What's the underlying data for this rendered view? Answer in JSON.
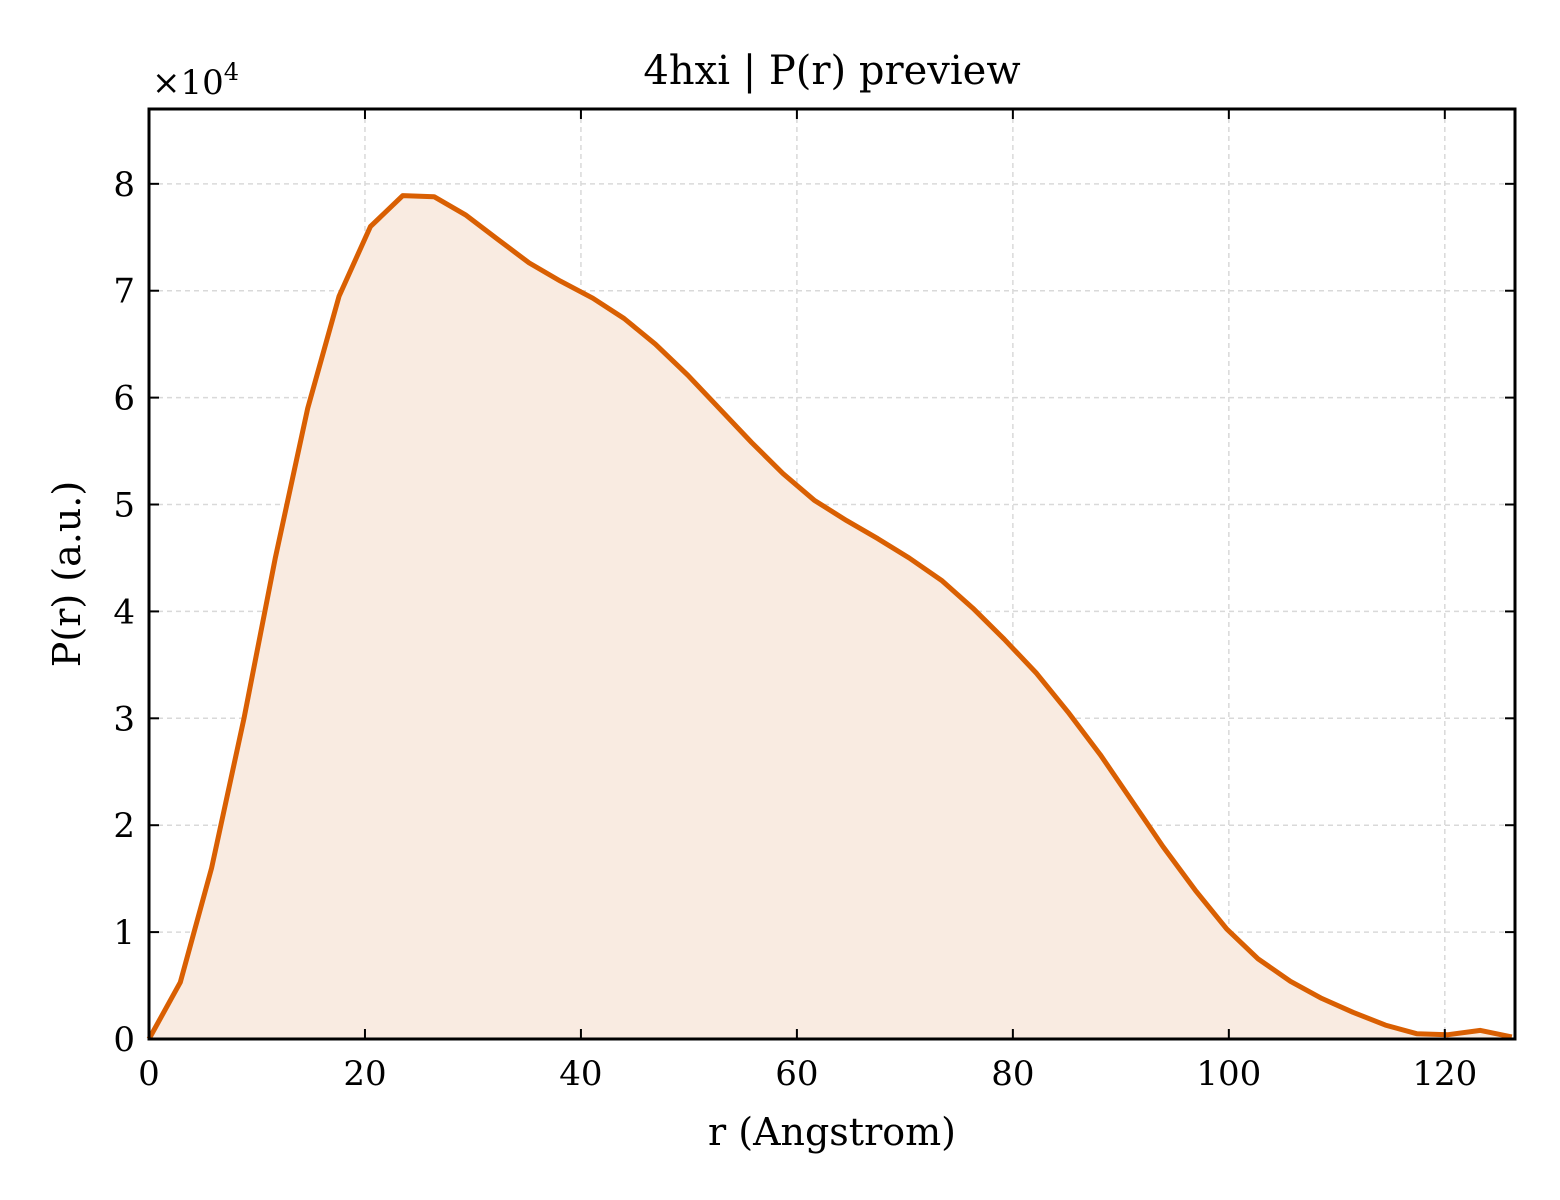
{
  "chart_data": {
    "type": "area",
    "title": "4hxi | P(r) preview",
    "xlabel": "r (Angstrom)",
    "ylabel": "P(r) (a.u.)",
    "y_scale_label": "×10",
    "y_scale_exponent": "4",
    "xlim": [
      0,
      126.5
    ],
    "ylim": [
      0,
      8.7
    ],
    "y_multiplier": 10000,
    "x_ticks": [
      0,
      20,
      40,
      60,
      80,
      100,
      120
    ],
    "y_ticks": [
      0,
      1,
      2,
      3,
      4,
      5,
      6,
      7,
      8
    ],
    "grid": true,
    "line_color": "#d95f02",
    "fill_color": "#f9ebe1",
    "series": [
      {
        "x": [
          0,
          2.9,
          5.8,
          8.8,
          11.7,
          14.7,
          17.6,
          20.5,
          23.5,
          26.4,
          29.3,
          32.3,
          35.2,
          38.1,
          41.1,
          44.0,
          46.9,
          49.9,
          52.8,
          55.8,
          58.7,
          61.6,
          64.6,
          67.5,
          70.4,
          73.4,
          76.3,
          79.2,
          82.2,
          85.1,
          88.1,
          91.0,
          93.9,
          96.9,
          99.8,
          102.7,
          105.7,
          108.6,
          111.5,
          114.5,
          117.4,
          120.3,
          123.3,
          126.2
        ],
        "values": [
          0.0,
          0.53,
          1.6,
          3.0,
          4.5,
          5.9,
          6.95,
          7.6,
          7.89,
          7.88,
          7.71,
          7.48,
          7.26,
          7.09,
          6.93,
          6.74,
          6.5,
          6.21,
          5.9,
          5.58,
          5.29,
          5.04,
          4.85,
          4.68,
          4.5,
          4.29,
          4.03,
          3.74,
          3.42,
          3.06,
          2.66,
          2.23,
          1.8,
          1.39,
          1.03,
          0.75,
          0.54,
          0.38,
          0.25,
          0.13,
          0.05,
          0.04,
          0.08,
          0.02
        ]
      }
    ]
  }
}
